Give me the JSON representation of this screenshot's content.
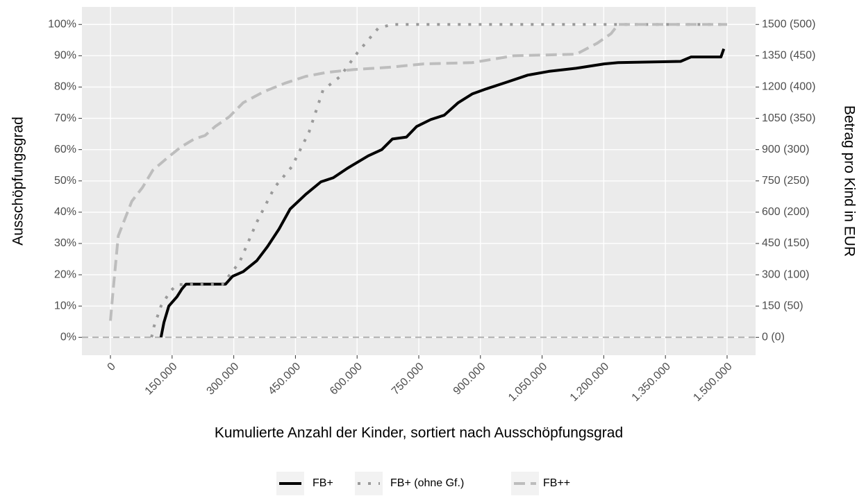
{
  "chart_data": {
    "type": "line",
    "xlabel": "Kumulierte Anzahl der Kinder, sortiert nach Ausschöpfungsgrad",
    "ylabel": "Ausschöpfungsgrad",
    "y2label": "Betrag pro Kind in EUR",
    "xlim": [
      -69300,
      1569300
    ],
    "ylim": [
      -5.7,
      105.6
    ],
    "y2lim": [
      -85.5,
      1584
    ],
    "xticks": [
      0,
      {
        "value": 150000,
        "label": "150.000"
      },
      {
        "value": 300000,
        "label": "300.000"
      },
      {
        "value": 450000,
        "label": "450.000"
      },
      {
        "value": 600000,
        "label": "600.000"
      },
      {
        "value": 750000,
        "label": "750.000"
      },
      {
        "value": 900000,
        "label": "900.000"
      },
      {
        "value": 1050000,
        "label": "1.050.000"
      },
      {
        "value": 1200000,
        "label": "1.200.000"
      },
      {
        "value": 1350000,
        "label": "1.350.000"
      },
      {
        "value": 1500000,
        "label": "1.500.000"
      }
    ],
    "yticks": [
      {
        "value": 0,
        "label": "0%"
      },
      {
        "value": 10,
        "label": "10%"
      },
      {
        "value": 20,
        "label": "20%"
      },
      {
        "value": 30,
        "label": "30%"
      },
      {
        "value": 40,
        "label": "40%"
      },
      {
        "value": 50,
        "label": "50%"
      },
      {
        "value": 60,
        "label": "60%"
      },
      {
        "value": 70,
        "label": "70%"
      },
      {
        "value": 80,
        "label": "80%"
      },
      {
        "value": 90,
        "label": "90%"
      },
      {
        "value": 100,
        "label": "100%"
      }
    ],
    "y2ticks": [
      {
        "value": 0,
        "label": "0 (0)"
      },
      {
        "value": 150,
        "label": "150 (50)"
      },
      {
        "value": 300,
        "label": "300 (100)"
      },
      {
        "value": 450,
        "label": "450 (150)"
      },
      {
        "value": 600,
        "label": "600 (200)"
      },
      {
        "value": 750,
        "label": "750 (250)"
      },
      {
        "value": 900,
        "label": "900 (300)"
      },
      {
        "value": 1050,
        "label": "1050 (350)"
      },
      {
        "value": 1200,
        "label": "1200 (400)"
      },
      {
        "value": 1350,
        "label": "1350 (450)"
      },
      {
        "value": 1500,
        "label": "1500 (500)"
      }
    ],
    "grid": true,
    "hlines": [
      0
    ],
    "legend": "bottom",
    "series": [
      {
        "name": "FB+",
        "color": "#000000",
        "dash": "solid",
        "x": [
          123000,
          130000,
          142000,
          162000,
          174000,
          184000,
          280000,
          297000,
          323000,
          356000,
          382000,
          410000,
          437000,
          475000,
          512000,
          542000,
          576000,
          627000,
          660000,
          686000,
          720000,
          745000,
          779000,
          812000,
          846000,
          880000,
          914000,
          965000,
          1015000,
          1066000,
          1133000,
          1201000,
          1235000,
          1387000,
          1412000,
          1485000,
          1492000
        ],
        "values": [
          0,
          4.7,
          10,
          13,
          15.5,
          17,
          17,
          19.5,
          21,
          24.5,
          29,
          34.6,
          41,
          45.7,
          49.7,
          51,
          54,
          58,
          60,
          63.4,
          64,
          67.4,
          69.6,
          71,
          75,
          77.8,
          79.4,
          81.6,
          83.8,
          85,
          86,
          87.4,
          87.8,
          88.2,
          89.6,
          89.6,
          92.2
        ]
      },
      {
        "name": "FB+ (ohne Gf.)",
        "color": "#9a9a9a",
        "dash": "dotted",
        "x": [
          100000,
          106000,
          123000,
          145000,
          162000,
          272000,
          314000,
          356000,
          399000,
          441000,
          483000,
          517000,
          559000,
          601000,
          652000,
          686000,
          1500000
        ],
        "values": [
          0,
          3.5,
          10,
          14.6,
          16.9,
          16.9,
          24,
          36.8,
          47.9,
          54.5,
          65.6,
          79,
          83.4,
          91,
          98.9,
          100,
          100
        ]
      },
      {
        "name": "FB++",
        "color": "#bdbdbd",
        "dash": "dashed",
        "x": [
          0,
          7000,
          19000,
          32000,
          52000,
          78000,
          103000,
          137000,
          171000,
          204000,
          230000,
          255000,
          289000,
          323000,
          373000,
          424000,
          475000,
          527000,
          593000,
          677000,
          762000,
          880000,
          981000,
          1133000,
          1184000,
          1218000,
          1235000,
          1500000
        ],
        "values": [
          5.3,
          15.7,
          32.4,
          36.8,
          43.5,
          47.9,
          53.4,
          57.2,
          60.8,
          63.4,
          64.5,
          67.4,
          70.5,
          75,
          78.5,
          81.2,
          83.4,
          84.7,
          85.6,
          86.3,
          87.4,
          87.8,
          90,
          90.5,
          94,
          97.1,
          100,
          100
        ]
      }
    ]
  }
}
